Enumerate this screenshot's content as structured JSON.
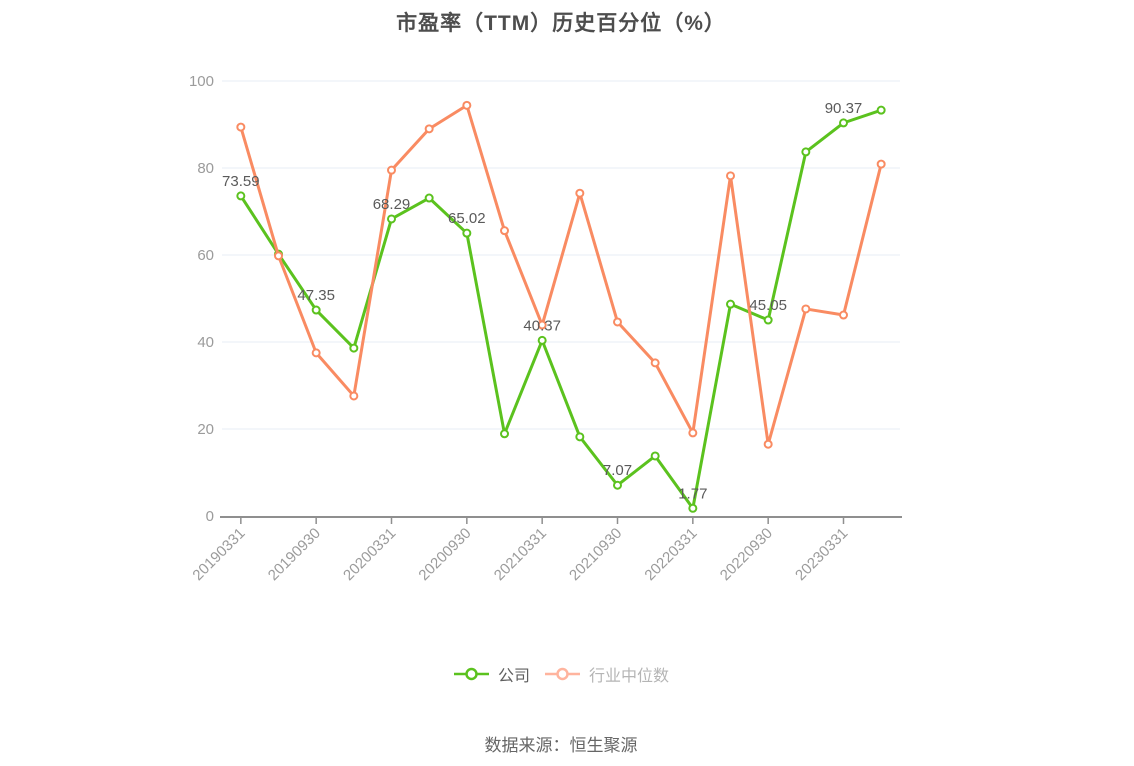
{
  "title": "市盈率（TTM）历史百分位（%）",
  "footer": {
    "source": "数据来源：恒生聚源"
  },
  "legend": {
    "items": [
      {
        "label": "公司",
        "icon_color": "#5bc21e",
        "text_color": "#5f5f5f"
      },
      {
        "label": "行业中位数",
        "icon_color": "#ffb49e",
        "text_color": "#b5b5b5"
      }
    ]
  },
  "colors": {
    "company_line": "#5bc21e",
    "industry_line": "#f98b62",
    "grid_line": "#e7edf5",
    "axis_line": "#8f8f8f",
    "axis_label": "#9b9b9b",
    "data_label": "#5a5a5a",
    "title_text": "#4d4d4d",
    "footer_text": "#666666",
    "marker_fill": "#ffffff"
  },
  "chart_data": {
    "type": "line",
    "title": "市盈率（TTM）历史百分位（%）",
    "xlabel": "",
    "ylabel": "",
    "ylim": [
      0,
      100
    ],
    "y_ticks": [
      0,
      20,
      40,
      60,
      80,
      100
    ],
    "grid": "horizontal",
    "legend_position": "bottom",
    "x_label_rotate": 45,
    "categories": [
      "20190331",
      "",
      "20190930",
      "",
      "20200331",
      "",
      "20200930",
      "",
      "20210331",
      "",
      "20210930",
      "",
      "20220331",
      "",
      "20220930",
      "",
      "20230331",
      ""
    ],
    "series": [
      {
        "name": "公司",
        "color": "#5bc21e",
        "values": [
          73.59,
          60.2,
          47.35,
          38.6,
          68.29,
          73.1,
          65.02,
          18.9,
          40.37,
          18.2,
          7.07,
          13.8,
          1.77,
          48.7,
          45.05,
          83.7,
          90.37,
          93.3
        ],
        "point_labels": [
          "73.59",
          null,
          "47.35",
          null,
          "68.29",
          null,
          "65.02",
          null,
          "40.37",
          null,
          "7.07",
          null,
          "1.77",
          null,
          "45.05",
          null,
          "90.37",
          null
        ]
      },
      {
        "name": "行业中位数",
        "color": "#f98b62",
        "values": [
          89.4,
          59.8,
          37.5,
          27.6,
          79.5,
          89.0,
          94.4,
          65.6,
          43.9,
          74.2,
          44.6,
          35.2,
          19.1,
          78.2,
          16.5,
          47.6,
          46.2,
          80.9
        ],
        "point_labels": []
      }
    ]
  }
}
